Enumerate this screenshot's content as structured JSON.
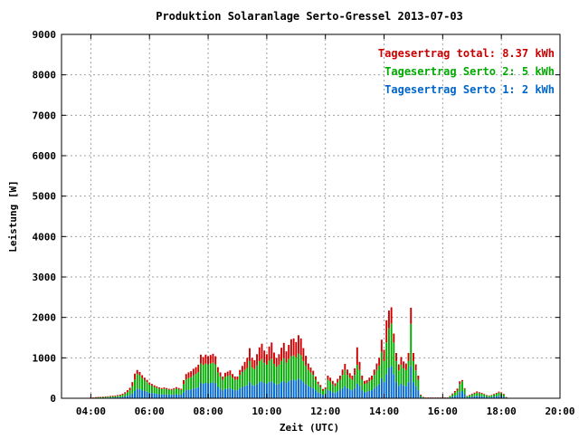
{
  "chart_data": {
    "type": "bar",
    "stacked": true,
    "title": "Produktion Solaranlage Serto-Gressel 2013-07-03",
    "xlabel": "Zeit (UTC)",
    "ylabel": "Leistung [W]",
    "xlim": [
      "03:00",
      "20:00"
    ],
    "ylim": [
      0,
      9000
    ],
    "x_ticks": [
      "04:00",
      "06:00",
      "08:00",
      "10:00",
      "12:00",
      "14:00",
      "16:00",
      "18:00",
      "20:00"
    ],
    "y_ticks": [
      "0",
      "1000",
      "2000",
      "3000",
      "4000",
      "5000",
      "6000",
      "7000",
      "8000",
      "9000"
    ],
    "grid": true,
    "legend_position": "top-right",
    "legend": [
      {
        "text": "Tagesertrag total: 8.37 kWh",
        "color": "#cc0000"
      },
      {
        "text": "Tagesertrag Serto 2: 5 kWh",
        "color": "#00aa00"
      },
      {
        "text": "Tagesertrag Serto 1: 2 kWh",
        "color": "#0066cc"
      }
    ],
    "interval_minutes": 5,
    "x_start": "04:00",
    "series": [
      {
        "name": "Tagesertrag Serto 1: 2 kWh",
        "color": "#0066cc",
        "values": [
          5,
          5,
          8,
          10,
          10,
          12,
          15,
          15,
          18,
          20,
          22,
          25,
          28,
          35,
          45,
          60,
          80,
          120,
          180,
          240,
          230,
          200,
          180,
          160,
          140,
          130,
          120,
          110,
          100,
          95,
          100,
          95,
          90,
          85,
          90,
          100,
          95,
          90,
          150,
          200,
          210,
          220,
          240,
          250,
          270,
          380,
          360,
          380,
          370,
          380,
          390,
          370,
          280,
          240,
          200,
          230,
          240,
          250,
          220,
          200,
          200,
          250,
          280,
          300,
          320,
          400,
          330,
          310,
          350,
          400,
          420,
          380,
          360,
          400,
          420,
          370,
          340,
          360,
          400,
          430,
          380,
          420,
          450,
          460,
          440,
          480,
          460,
          400,
          350,
          300,
          280,
          250,
          200,
          150,
          120,
          80,
          100,
          200,
          180,
          150,
          130,
          170,
          200,
          250,
          300,
          250,
          220,
          200,
          250,
          360,
          300,
          200,
          150,
          160,
          180,
          200,
          250,
          300,
          350,
          500,
          400,
          600,
          750,
          800,
          600,
          400,
          300,
          360,
          320,
          300,
          400,
          800,
          400,
          300,
          200,
          30,
          10,
          5,
          5,
          5,
          5,
          5,
          5,
          5,
          5,
          5,
          5,
          20,
          40,
          60,
          80,
          150,
          180,
          100,
          20,
          30,
          40,
          50,
          60,
          55,
          50,
          40,
          30,
          25,
          30,
          40,
          50,
          60,
          55,
          40,
          10
        ]
      },
      {
        "name": "Tagesertrag Serto 2: 5 kWh",
        "color": "#00aa00",
        "values": [
          8,
          8,
          12,
          15,
          15,
          18,
          20,
          22,
          25,
          28,
          30,
          35,
          40,
          50,
          70,
          90,
          120,
          180,
          280,
          360,
          340,
          300,
          270,
          240,
          200,
          180,
          160,
          150,
          140,
          130,
          140,
          130,
          120,
          120,
          130,
          140,
          130,
          120,
          200,
          270,
          290,
          300,
          330,
          350,
          380,
          480,
          460,
          480,
          470,
          480,
          490,
          470,
          360,
          300,
          260,
          300,
          310,
          320,
          290,
          260,
          260,
          330,
          370,
          400,
          430,
          520,
          430,
          410,
          460,
          520,
          550,
          500,
          470,
          530,
          560,
          480,
          440,
          470,
          520,
          560,
          500,
          550,
          590,
          600,
          570,
          620,
          600,
          520,
          460,
          400,
          360,
          330,
          260,
          200,
          160,
          110,
          130,
          260,
          240,
          200,
          170,
          220,
          260,
          330,
          400,
          330,
          290,
          260,
          330,
          470,
          400,
          260,
          200,
          210,
          240,
          260,
          330,
          400,
          460,
          650,
          520,
          780,
          980,
          1050,
          780,
          520,
          390,
          470,
          420,
          400,
          520,
          1040,
          520,
          390,
          260,
          40,
          15,
          8,
          8,
          8,
          8,
          8,
          8,
          8,
          8,
          8,
          8,
          30,
          55,
          80,
          110,
          200,
          240,
          130,
          30,
          40,
          55,
          65,
          80,
          70,
          65,
          55,
          40,
          35,
          40,
          55,
          65,
          80,
          70,
          55,
          15
        ]
      },
      {
        "name": "Tagesertrag total: 8.37 kWh",
        "color": "#cc0000",
        "values": [
          5,
          5,
          7,
          9,
          9,
          10,
          12,
          13,
          14,
          16,
          18,
          20,
          22,
          28,
          35,
          50,
          60,
          100,
          150,
          100,
          80,
          70,
          60,
          55,
          50,
          45,
          40,
          35,
          30,
          28,
          30,
          28,
          25,
          25,
          30,
          35,
          30,
          25,
          100,
          130,
          140,
          150,
          160,
          170,
          180,
          220,
          200,
          220,
          200,
          210,
          220,
          200,
          130,
          100,
          80,
          100,
          110,
          120,
          90,
          80,
          80,
          120,
          150,
          200,
          250,
          320,
          240,
          220,
          280,
          340,
          380,
          300,
          260,
          350,
          400,
          280,
          220,
          260,
          330,
          380,
          280,
          350,
          420,
          420,
          380,
          460,
          420,
          320,
          240,
          160,
          120,
          100,
          80,
          60,
          50,
          40,
          40,
          100,
          90,
          80,
          70,
          90,
          100,
          130,
          150,
          130,
          110,
          100,
          160,
          430,
          200,
          100,
          80,
          80,
          90,
          100,
          130,
          160,
          190,
          300,
          280,
          550,
          440,
          400,
          220,
          200,
          150,
          190,
          170,
          160,
          200,
          400,
          200,
          150,
          100,
          20,
          10,
          5,
          5,
          5,
          5,
          5,
          5,
          5,
          5,
          5,
          5,
          10,
          25,
          40,
          50,
          70,
          30,
          20,
          10,
          15,
          20,
          25,
          30,
          25,
          20,
          15,
          10,
          10,
          10,
          15,
          20,
          25,
          20,
          15,
          5
        ]
      }
    ]
  }
}
